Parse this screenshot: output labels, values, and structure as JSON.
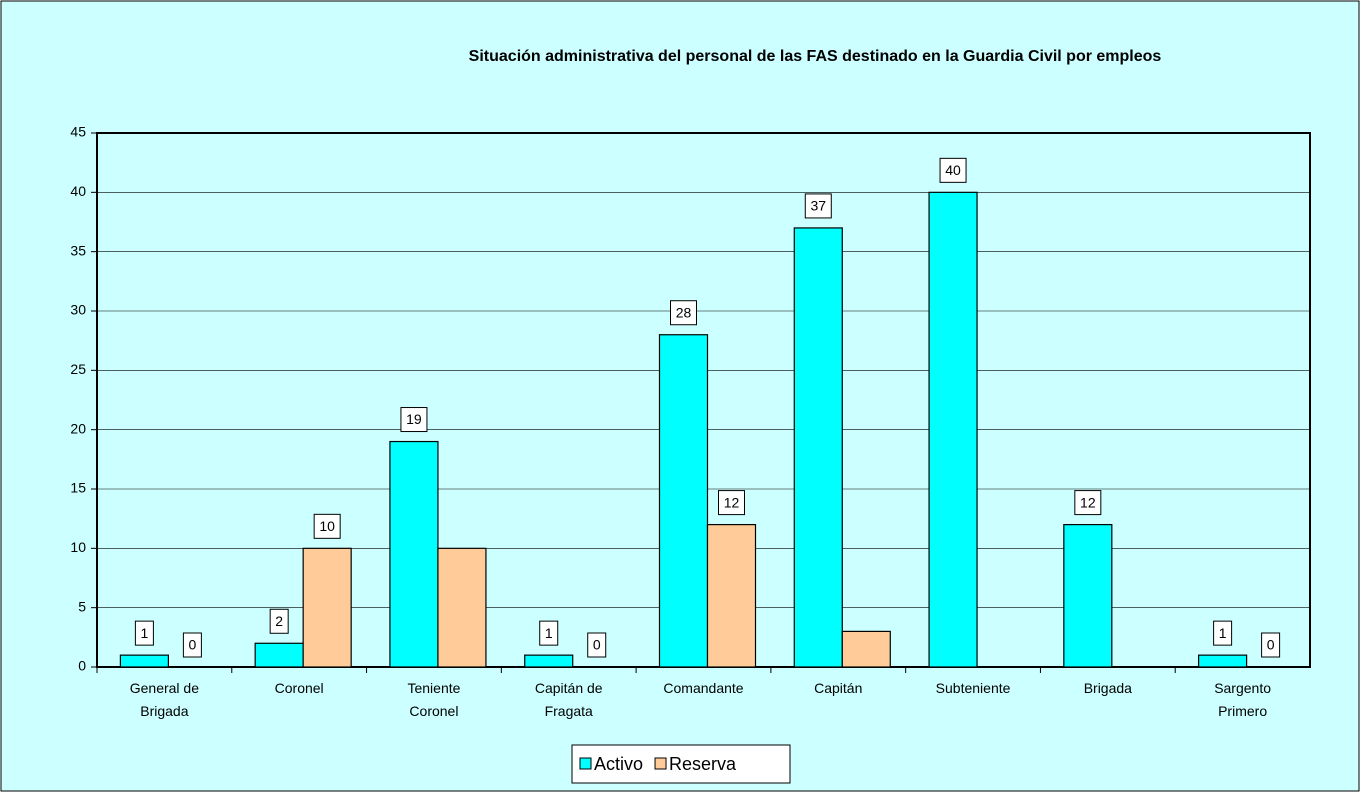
{
  "chart_data": {
    "type": "bar",
    "title": "Situación administrativa del personal de las FAS destinado en la Guardia Civil por empleos",
    "categories": [
      "General de Brigada",
      "Coronel",
      "Teniente Coronel",
      "Capitán de Fragata",
      "Comandante",
      "Capitán",
      "Subteniente",
      "Brigada",
      "Sargento Primero"
    ],
    "series": [
      {
        "name": "Activo",
        "color": "#00ffff",
        "values": [
          1,
          2,
          19,
          1,
          28,
          37,
          40,
          12,
          1
        ]
      },
      {
        "name": "Reserva",
        "color": "#ffcc99",
        "values": [
          0,
          10,
          10,
          0,
          12,
          3,
          null,
          null,
          0
        ],
        "value_labels": [
          "0",
          "10",
          null,
          "0",
          "12",
          null,
          null,
          null,
          "0"
        ]
      }
    ],
    "ylim": [
      0,
      45
    ],
    "yticks": [
      0,
      5,
      10,
      15,
      20,
      25,
      30,
      35,
      40,
      45
    ],
    "grid": true,
    "legend": "bottom"
  }
}
